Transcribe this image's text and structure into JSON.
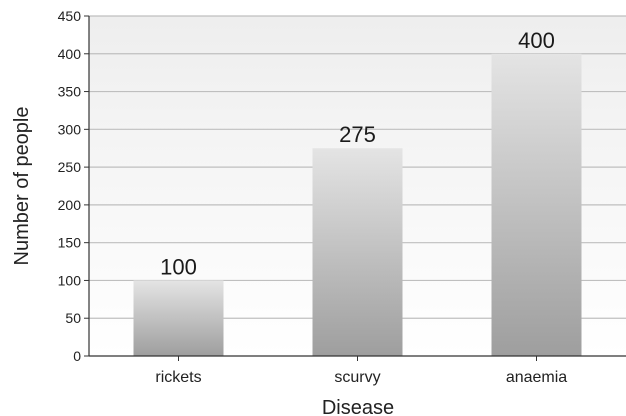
{
  "chart_data": {
    "type": "bar",
    "categories": [
      "rickets",
      "scurvy",
      "anaemia"
    ],
    "values": [
      100,
      275,
      400
    ],
    "data_labels": [
      "100",
      "275",
      "400"
    ],
    "xlabel": "Disease",
    "ylabel": "Number of people",
    "ylim": [
      0,
      450
    ],
    "yticks": [
      0,
      50,
      100,
      150,
      200,
      250,
      300,
      350,
      400,
      450
    ],
    "grid": true,
    "legend": "none"
  },
  "colors": {
    "bar_top": "#e4e4e4",
    "bar_bottom": "#9e9e9e",
    "plot_bg_top": "#eeeeee",
    "plot_bg_bottom": "#ffffff",
    "grid": "#bfbfbf",
    "axis": "#333333"
  }
}
